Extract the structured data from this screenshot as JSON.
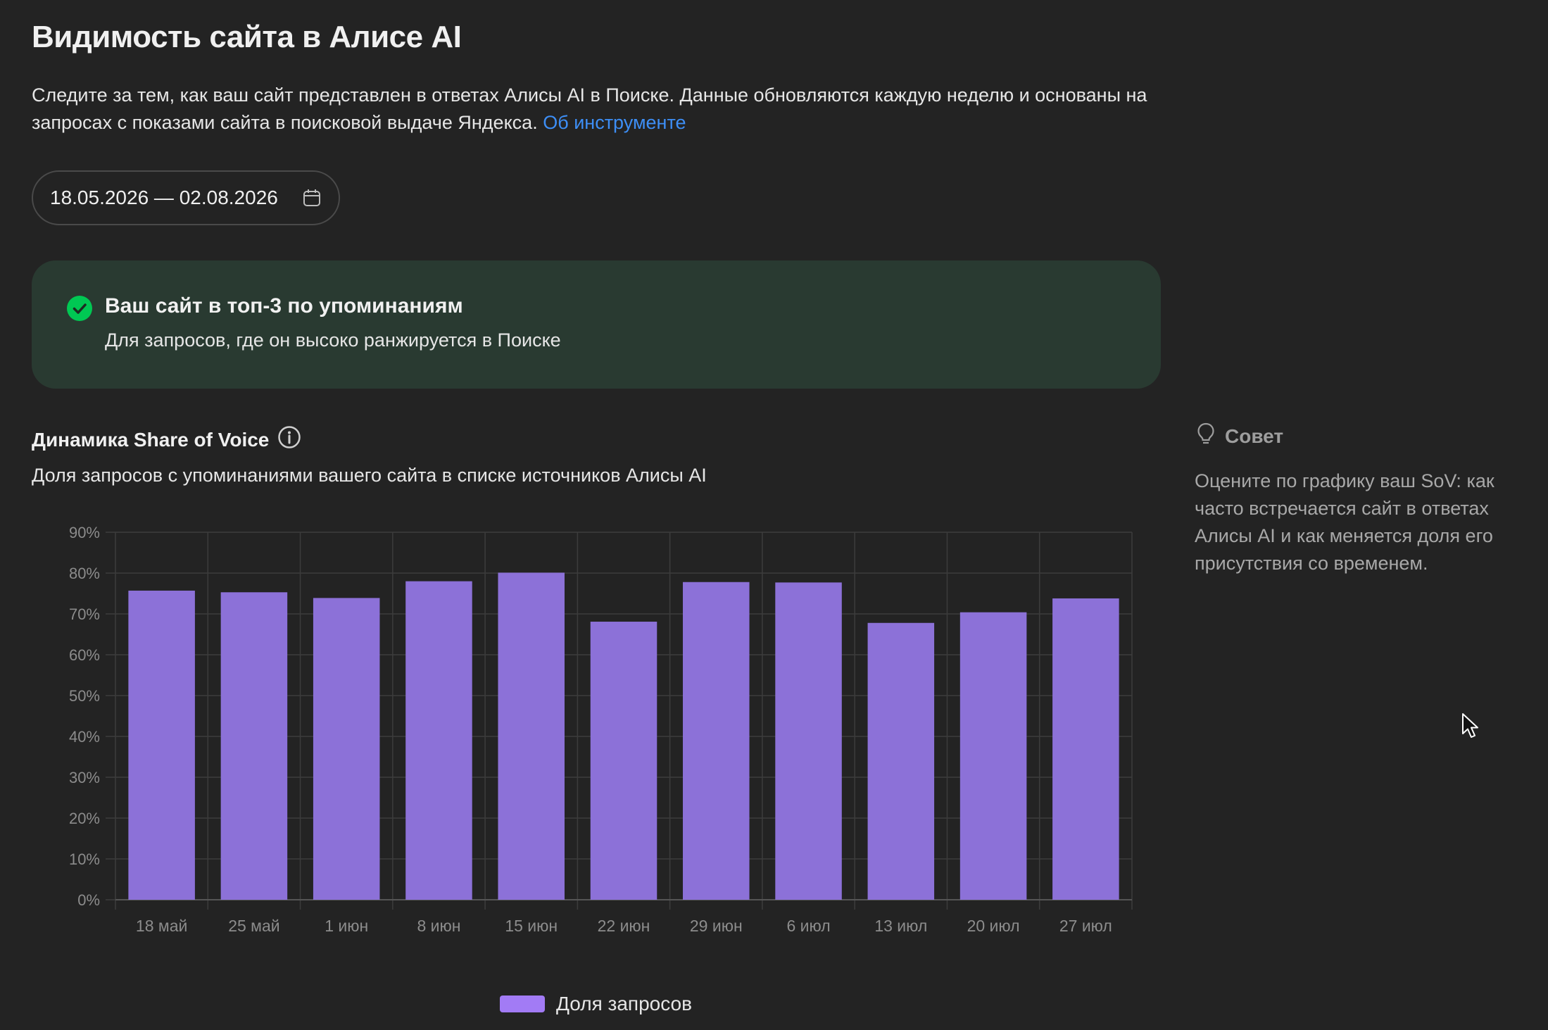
{
  "header": {
    "title": "Видимость сайта в Алисе AI",
    "description": "Следите за тем, как ваш сайт представлен в ответах Алисы AI в Поиске. Данные обновляются каждую неделю и основаны на запросах с показами сайта в поисковой выдаче Яндекса.",
    "about_link": "Об инструменте"
  },
  "date_range": {
    "value": "18.05.2026 — 02.08.2026",
    "icon": "calendar-icon"
  },
  "banner": {
    "title": "Ваш сайт в топ-3 по упоминаниям",
    "subtitle": "Для запросов, где он высоко ранжируется в Поиске",
    "icon": "check-circle-icon",
    "color": "#00c853"
  },
  "section": {
    "title": "Динамика Share of Voice",
    "subtitle": "Доля запросов с упоминаниями вашего сайта в списке источников Алисы AI",
    "icon": "info-icon"
  },
  "tip": {
    "title": "Совет",
    "text": "Оцените по графику ваш SoV: как часто встречается сайт в ответах Алисы AI и как меняется доля его присутствия со временем.",
    "icon": "lightbulb-icon"
  },
  "chart_data": {
    "type": "bar",
    "title": "",
    "xlabel": "",
    "ylabel": "",
    "categories": [
      "18 май",
      "25 май",
      "1 июн",
      "8 июн",
      "15 июн",
      "22 июн",
      "29 июн",
      "6 июл",
      "13 июл",
      "20 июл",
      "27 июл"
    ],
    "series": [
      {
        "name": "Доля запросов",
        "values": [
          75.7,
          75.3,
          73.9,
          78,
          80.1,
          68.1,
          77.8,
          77.7,
          67.8,
          70.4,
          73.8
        ]
      }
    ],
    "ylim": [
      0,
      90
    ],
    "yticks": [
      "0%",
      "10%",
      "20%",
      "30%",
      "40%",
      "50%",
      "60%",
      "70%",
      "80%",
      "90%"
    ],
    "grid": true,
    "legend_position": "bottom-center",
    "bar_color": "#8c71d8",
    "legend_color": "#a27bf5"
  }
}
